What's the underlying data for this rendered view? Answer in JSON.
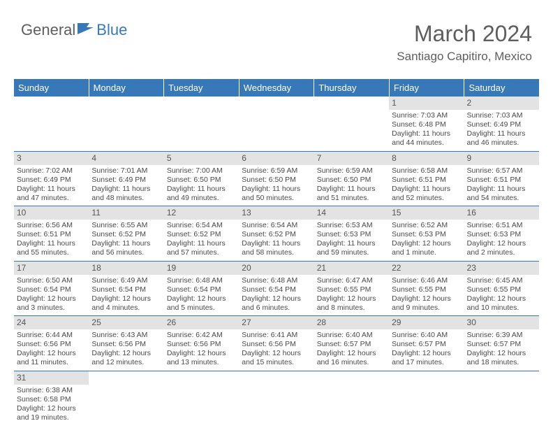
{
  "logo": {
    "text1": "General",
    "text2": "Blue"
  },
  "title": "March 2024",
  "location": "Santiago Capitiro, Mexico",
  "colors": {
    "header_bg": "#3779b8",
    "daynum_bg": "#e3e3e3",
    "text": "#4a4a4a",
    "title_text": "#5e5e5e"
  },
  "dayHeaders": [
    "Sunday",
    "Monday",
    "Tuesday",
    "Wednesday",
    "Thursday",
    "Friday",
    "Saturday"
  ],
  "weeks": [
    [
      {
        "blank": true
      },
      {
        "blank": true
      },
      {
        "blank": true
      },
      {
        "blank": true
      },
      {
        "blank": true
      },
      {
        "day": "1",
        "sunrise": "Sunrise: 7:03 AM",
        "sunset": "Sunset: 6:48 PM",
        "daylight1": "Daylight: 11 hours",
        "daylight2": "and 44 minutes."
      },
      {
        "day": "2",
        "sunrise": "Sunrise: 7:03 AM",
        "sunset": "Sunset: 6:49 PM",
        "daylight1": "Daylight: 11 hours",
        "daylight2": "and 46 minutes."
      }
    ],
    [
      {
        "day": "3",
        "sunrise": "Sunrise: 7:02 AM",
        "sunset": "Sunset: 6:49 PM",
        "daylight1": "Daylight: 11 hours",
        "daylight2": "and 47 minutes."
      },
      {
        "day": "4",
        "sunrise": "Sunrise: 7:01 AM",
        "sunset": "Sunset: 6:49 PM",
        "daylight1": "Daylight: 11 hours",
        "daylight2": "and 48 minutes."
      },
      {
        "day": "5",
        "sunrise": "Sunrise: 7:00 AM",
        "sunset": "Sunset: 6:50 PM",
        "daylight1": "Daylight: 11 hours",
        "daylight2": "and 49 minutes."
      },
      {
        "day": "6",
        "sunrise": "Sunrise: 6:59 AM",
        "sunset": "Sunset: 6:50 PM",
        "daylight1": "Daylight: 11 hours",
        "daylight2": "and 50 minutes."
      },
      {
        "day": "7",
        "sunrise": "Sunrise: 6:59 AM",
        "sunset": "Sunset: 6:50 PM",
        "daylight1": "Daylight: 11 hours",
        "daylight2": "and 51 minutes."
      },
      {
        "day": "8",
        "sunrise": "Sunrise: 6:58 AM",
        "sunset": "Sunset: 6:51 PM",
        "daylight1": "Daylight: 11 hours",
        "daylight2": "and 52 minutes."
      },
      {
        "day": "9",
        "sunrise": "Sunrise: 6:57 AM",
        "sunset": "Sunset: 6:51 PM",
        "daylight1": "Daylight: 11 hours",
        "daylight2": "and 54 minutes."
      }
    ],
    [
      {
        "day": "10",
        "sunrise": "Sunrise: 6:56 AM",
        "sunset": "Sunset: 6:51 PM",
        "daylight1": "Daylight: 11 hours",
        "daylight2": "and 55 minutes."
      },
      {
        "day": "11",
        "sunrise": "Sunrise: 6:55 AM",
        "sunset": "Sunset: 6:52 PM",
        "daylight1": "Daylight: 11 hours",
        "daylight2": "and 56 minutes."
      },
      {
        "day": "12",
        "sunrise": "Sunrise: 6:54 AM",
        "sunset": "Sunset: 6:52 PM",
        "daylight1": "Daylight: 11 hours",
        "daylight2": "and 57 minutes."
      },
      {
        "day": "13",
        "sunrise": "Sunrise: 6:54 AM",
        "sunset": "Sunset: 6:52 PM",
        "daylight1": "Daylight: 11 hours",
        "daylight2": "and 58 minutes."
      },
      {
        "day": "14",
        "sunrise": "Sunrise: 6:53 AM",
        "sunset": "Sunset: 6:53 PM",
        "daylight1": "Daylight: 11 hours",
        "daylight2": "and 59 minutes."
      },
      {
        "day": "15",
        "sunrise": "Sunrise: 6:52 AM",
        "sunset": "Sunset: 6:53 PM",
        "daylight1": "Daylight: 12 hours",
        "daylight2": "and 1 minute."
      },
      {
        "day": "16",
        "sunrise": "Sunrise: 6:51 AM",
        "sunset": "Sunset: 6:53 PM",
        "daylight1": "Daylight: 12 hours",
        "daylight2": "and 2 minutes."
      }
    ],
    [
      {
        "day": "17",
        "sunrise": "Sunrise: 6:50 AM",
        "sunset": "Sunset: 6:54 PM",
        "daylight1": "Daylight: 12 hours",
        "daylight2": "and 3 minutes."
      },
      {
        "day": "18",
        "sunrise": "Sunrise: 6:49 AM",
        "sunset": "Sunset: 6:54 PM",
        "daylight1": "Daylight: 12 hours",
        "daylight2": "and 4 minutes."
      },
      {
        "day": "19",
        "sunrise": "Sunrise: 6:48 AM",
        "sunset": "Sunset: 6:54 PM",
        "daylight1": "Daylight: 12 hours",
        "daylight2": "and 5 minutes."
      },
      {
        "day": "20",
        "sunrise": "Sunrise: 6:48 AM",
        "sunset": "Sunset: 6:54 PM",
        "daylight1": "Daylight: 12 hours",
        "daylight2": "and 6 minutes."
      },
      {
        "day": "21",
        "sunrise": "Sunrise: 6:47 AM",
        "sunset": "Sunset: 6:55 PM",
        "daylight1": "Daylight: 12 hours",
        "daylight2": "and 8 minutes."
      },
      {
        "day": "22",
        "sunrise": "Sunrise: 6:46 AM",
        "sunset": "Sunset: 6:55 PM",
        "daylight1": "Daylight: 12 hours",
        "daylight2": "and 9 minutes."
      },
      {
        "day": "23",
        "sunrise": "Sunrise: 6:45 AM",
        "sunset": "Sunset: 6:55 PM",
        "daylight1": "Daylight: 12 hours",
        "daylight2": "and 10 minutes."
      }
    ],
    [
      {
        "day": "24",
        "sunrise": "Sunrise: 6:44 AM",
        "sunset": "Sunset: 6:56 PM",
        "daylight1": "Daylight: 12 hours",
        "daylight2": "and 11 minutes."
      },
      {
        "day": "25",
        "sunrise": "Sunrise: 6:43 AM",
        "sunset": "Sunset: 6:56 PM",
        "daylight1": "Daylight: 12 hours",
        "daylight2": "and 12 minutes."
      },
      {
        "day": "26",
        "sunrise": "Sunrise: 6:42 AM",
        "sunset": "Sunset: 6:56 PM",
        "daylight1": "Daylight: 12 hours",
        "daylight2": "and 13 minutes."
      },
      {
        "day": "27",
        "sunrise": "Sunrise: 6:41 AM",
        "sunset": "Sunset: 6:56 PM",
        "daylight1": "Daylight: 12 hours",
        "daylight2": "and 15 minutes."
      },
      {
        "day": "28",
        "sunrise": "Sunrise: 6:40 AM",
        "sunset": "Sunset: 6:57 PM",
        "daylight1": "Daylight: 12 hours",
        "daylight2": "and 16 minutes."
      },
      {
        "day": "29",
        "sunrise": "Sunrise: 6:40 AM",
        "sunset": "Sunset: 6:57 PM",
        "daylight1": "Daylight: 12 hours",
        "daylight2": "and 17 minutes."
      },
      {
        "day": "30",
        "sunrise": "Sunrise: 6:39 AM",
        "sunset": "Sunset: 6:57 PM",
        "daylight1": "Daylight: 12 hours",
        "daylight2": "and 18 minutes."
      }
    ],
    [
      {
        "day": "31",
        "sunrise": "Sunrise: 6:38 AM",
        "sunset": "Sunset: 6:58 PM",
        "daylight1": "Daylight: 12 hours",
        "daylight2": "and 19 minutes."
      },
      {
        "blank": true
      },
      {
        "blank": true
      },
      {
        "blank": true
      },
      {
        "blank": true
      },
      {
        "blank": true
      },
      {
        "blank": true
      }
    ]
  ]
}
